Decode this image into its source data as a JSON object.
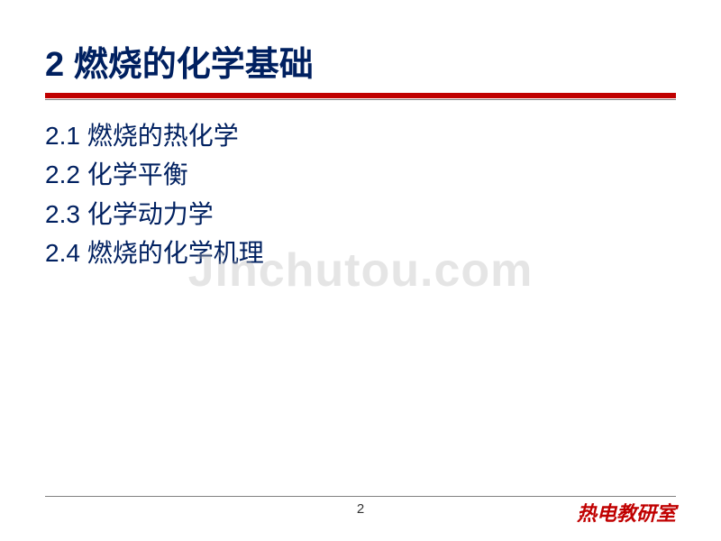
{
  "slide": {
    "title": "2 燃烧的化学基础",
    "title_color": "#002060",
    "title_fontsize": 38,
    "underline_color": "#c00000",
    "underline_height": 6,
    "toc": [
      "2.1 燃烧的热化学",
      "2.2 化学平衡",
      "2.3 化学动力学",
      "2.4 燃烧的化学机理"
    ],
    "toc_color": "#002060",
    "toc_fontsize": 28,
    "background_color": "#ffffff"
  },
  "watermark": {
    "text": "Jinchutou.com",
    "color": "rgba(180,180,180,0.35)",
    "fontsize": 52
  },
  "footer": {
    "page_number": "2",
    "page_number_color": "#333333",
    "label": "热电教研室",
    "label_color": "#c00000",
    "label_fontsize": 22,
    "line_color": "#808080"
  }
}
